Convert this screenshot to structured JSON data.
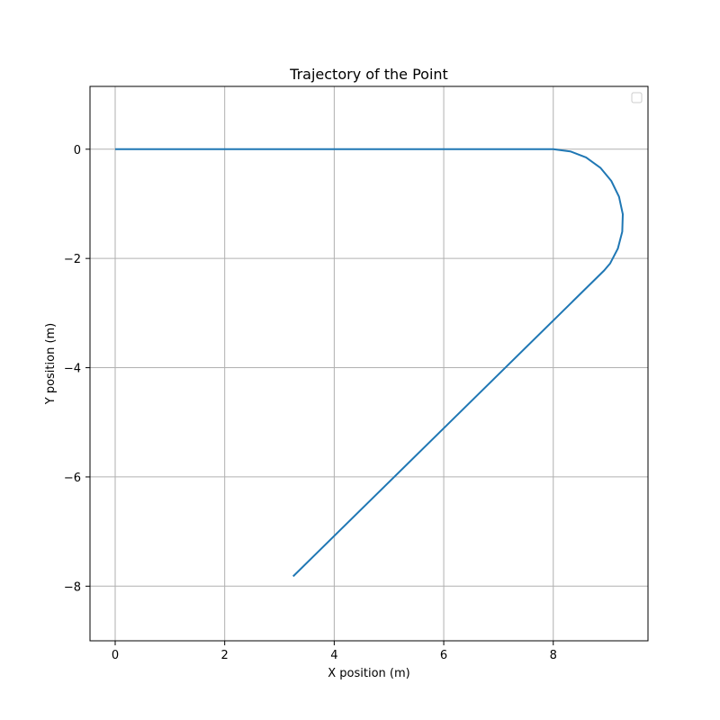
{
  "chart_data": {
    "type": "line",
    "title": "Trajectory of the Point",
    "xlabel": "X position (m)",
    "ylabel": "Y position (m)",
    "xlim": [
      -0.46,
      9.73
    ],
    "ylim": [
      -9.0,
      1.15
    ],
    "xticks": [
      0,
      2,
      4,
      6,
      8
    ],
    "yticks": [
      0,
      -2,
      -4,
      -6,
      -8
    ],
    "xtick_labels": [
      "0",
      "2",
      "4",
      "6",
      "8"
    ],
    "ytick_labels": [
      "0",
      "−2",
      "−4",
      "−6",
      "−8"
    ],
    "grid": true,
    "legend": {
      "placement": "top-right",
      "entries": []
    },
    "series": [
      {
        "color": "#1f77b4",
        "x": [
          0,
          8,
          8.31,
          8.6,
          8.86,
          9.06,
          9.2,
          9.27,
          9.26,
          9.18,
          9.04,
          8.93,
          3.25
        ],
        "y": [
          0,
          0,
          -0.04,
          -0.15,
          -0.34,
          -0.58,
          -0.87,
          -1.19,
          -1.51,
          -1.82,
          -2.09,
          -2.22,
          -7.82
        ]
      }
    ]
  }
}
